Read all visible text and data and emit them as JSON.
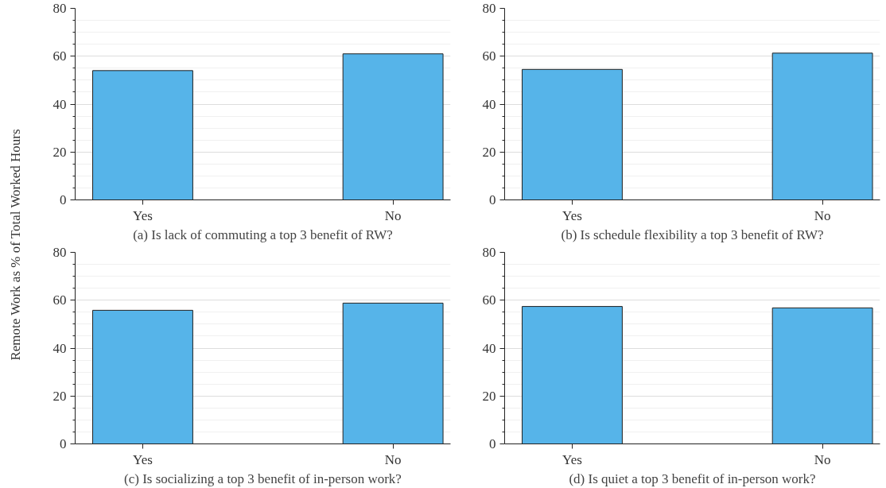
{
  "chart_data": [
    {
      "type": "bar",
      "xlabel": "(a) Is lack of commuting a top 3 benefit of RW?",
      "ylabel": "Remote Work as % of Total Worked Hours",
      "categories": [
        "Yes",
        "No"
      ],
      "values": [
        54,
        61
      ],
      "color": "#56b4e9",
      "ylim": [
        0,
        80
      ],
      "yticks": [
        0,
        20,
        40,
        60,
        80
      ],
      "grid": "y"
    },
    {
      "type": "bar",
      "xlabel": "(b) Is schedule flexibility a top 3 benefit of RW?",
      "categories": [
        "Yes",
        "No"
      ],
      "values": [
        54.5,
        61.3
      ],
      "color": "#56b4e9",
      "ylim": [
        0,
        80
      ],
      "yticks": [
        0,
        20,
        40,
        60,
        80
      ],
      "grid": "y"
    },
    {
      "type": "bar",
      "xlabel": "(c) Is socializing a top 3 benefit of in-person work?",
      "categories": [
        "Yes",
        "No"
      ],
      "values": [
        55.8,
        58.8
      ],
      "color": "#56b4e9",
      "ylim": [
        0,
        80
      ],
      "yticks": [
        0,
        20,
        40,
        60,
        80
      ],
      "grid": "y"
    },
    {
      "type": "bar",
      "xlabel": "(d) Is quiet a top 3 benefit of in-person work?",
      "categories": [
        "Yes",
        "No"
      ],
      "values": [
        57.4,
        56.8
      ],
      "color": "#56b4e9",
      "ylim": [
        0,
        80
      ],
      "yticks": [
        0,
        20,
        40,
        60,
        80
      ],
      "grid": "y"
    }
  ]
}
